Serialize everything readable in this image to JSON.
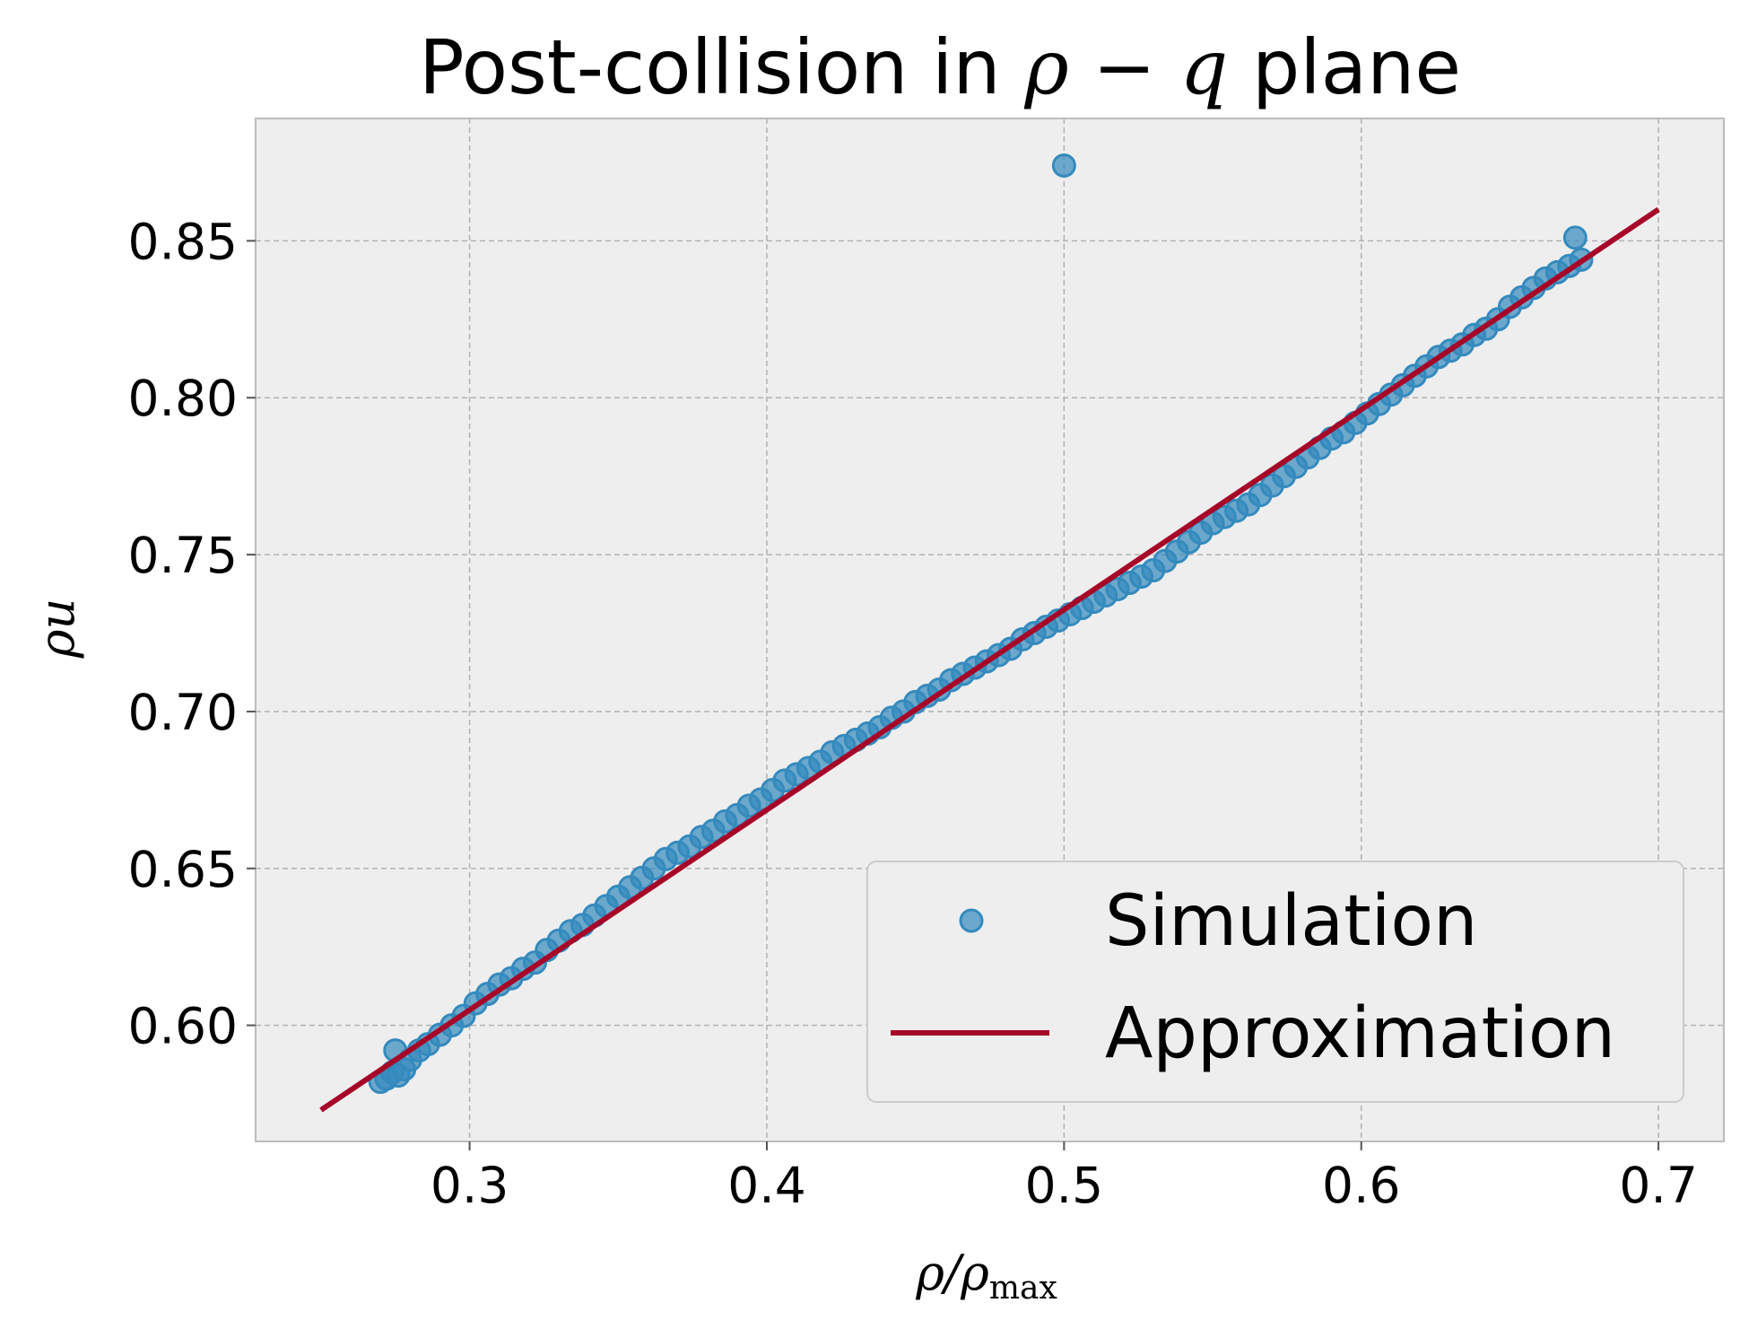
{
  "chart_data": {
    "type": "scatter",
    "title": {
      "prefix": "Post-collision in ",
      "math_rho": "ρ",
      "math_minus": " − ",
      "math_q": "q",
      "suffix": " plane"
    },
    "xlabel": {
      "main": "ρ/ρ",
      "sub": "max"
    },
    "ylabel": "ρu",
    "xlim": [
      0.228,
      0.722
    ],
    "ylim": [
      0.563,
      0.889
    ],
    "xticks": [
      {
        "value": 0.3,
        "label": "0.3"
      },
      {
        "value": 0.4,
        "label": "0.4"
      },
      {
        "value": 0.5,
        "label": "0.5"
      },
      {
        "value": 0.6,
        "label": "0.6"
      },
      {
        "value": 0.7,
        "label": "0.7"
      }
    ],
    "yticks": [
      {
        "value": 0.6,
        "label": "0.60"
      },
      {
        "value": 0.65,
        "label": "0.65"
      },
      {
        "value": 0.7,
        "label": "0.70"
      },
      {
        "value": 0.75,
        "label": "0.75"
      },
      {
        "value": 0.8,
        "label": "0.80"
      },
      {
        "value": 0.85,
        "label": "0.85"
      }
    ],
    "grid": true,
    "legend_position": "lower-right",
    "series": [
      {
        "name": "Simulation",
        "kind": "scatter",
        "color": "#348ABD",
        "points": [
          [
            0.27,
            0.582
          ],
          [
            0.272,
            0.583
          ],
          [
            0.274,
            0.585
          ],
          [
            0.275,
            0.592
          ],
          [
            0.276,
            0.584
          ],
          [
            0.278,
            0.586
          ],
          [
            0.28,
            0.589
          ],
          [
            0.283,
            0.592
          ],
          [
            0.286,
            0.594
          ],
          [
            0.29,
            0.597
          ],
          [
            0.294,
            0.6
          ],
          [
            0.298,
            0.603
          ],
          [
            0.302,
            0.607
          ],
          [
            0.306,
            0.61
          ],
          [
            0.31,
            0.613
          ],
          [
            0.314,
            0.615
          ],
          [
            0.318,
            0.618
          ],
          [
            0.322,
            0.62
          ],
          [
            0.326,
            0.624
          ],
          [
            0.33,
            0.627
          ],
          [
            0.334,
            0.63
          ],
          [
            0.338,
            0.632
          ],
          [
            0.342,
            0.635
          ],
          [
            0.346,
            0.638
          ],
          [
            0.35,
            0.641
          ],
          [
            0.354,
            0.644
          ],
          [
            0.358,
            0.647
          ],
          [
            0.362,
            0.65
          ],
          [
            0.366,
            0.653
          ],
          [
            0.37,
            0.655
          ],
          [
            0.374,
            0.657
          ],
          [
            0.378,
            0.66
          ],
          [
            0.382,
            0.662
          ],
          [
            0.386,
            0.665
          ],
          [
            0.39,
            0.667
          ],
          [
            0.394,
            0.67
          ],
          [
            0.398,
            0.672
          ],
          [
            0.402,
            0.675
          ],
          [
            0.406,
            0.678
          ],
          [
            0.41,
            0.68
          ],
          [
            0.414,
            0.682
          ],
          [
            0.418,
            0.684
          ],
          [
            0.422,
            0.687
          ],
          [
            0.426,
            0.689
          ],
          [
            0.43,
            0.691
          ],
          [
            0.434,
            0.693
          ],
          [
            0.438,
            0.695
          ],
          [
            0.442,
            0.698
          ],
          [
            0.446,
            0.7
          ],
          [
            0.45,
            0.703
          ],
          [
            0.454,
            0.705
          ],
          [
            0.458,
            0.707
          ],
          [
            0.462,
            0.71
          ],
          [
            0.466,
            0.712
          ],
          [
            0.47,
            0.714
          ],
          [
            0.474,
            0.716
          ],
          [
            0.478,
            0.718
          ],
          [
            0.482,
            0.72
          ],
          [
            0.486,
            0.723
          ],
          [
            0.49,
            0.725
          ],
          [
            0.494,
            0.727
          ],
          [
            0.498,
            0.729
          ],
          [
            0.502,
            0.731
          ],
          [
            0.506,
            0.733
          ],
          [
            0.51,
            0.735
          ],
          [
            0.514,
            0.737
          ],
          [
            0.518,
            0.739
          ],
          [
            0.522,
            0.741
          ],
          [
            0.526,
            0.743
          ],
          [
            0.53,
            0.745
          ],
          [
            0.534,
            0.748
          ],
          [
            0.538,
            0.751
          ],
          [
            0.542,
            0.754
          ],
          [
            0.546,
            0.757
          ],
          [
            0.55,
            0.76
          ],
          [
            0.554,
            0.762
          ],
          [
            0.558,
            0.764
          ],
          [
            0.562,
            0.766
          ],
          [
            0.566,
            0.769
          ],
          [
            0.57,
            0.772
          ],
          [
            0.574,
            0.775
          ],
          [
            0.578,
            0.778
          ],
          [
            0.582,
            0.781
          ],
          [
            0.586,
            0.784
          ],
          [
            0.59,
            0.787
          ],
          [
            0.594,
            0.789
          ],
          [
            0.598,
            0.792
          ],
          [
            0.602,
            0.795
          ],
          [
            0.606,
            0.798
          ],
          [
            0.61,
            0.801
          ],
          [
            0.614,
            0.804
          ],
          [
            0.618,
            0.807
          ],
          [
            0.622,
            0.81
          ],
          [
            0.626,
            0.813
          ],
          [
            0.63,
            0.815
          ],
          [
            0.634,
            0.817
          ],
          [
            0.638,
            0.82
          ],
          [
            0.642,
            0.822
          ],
          [
            0.646,
            0.825
          ],
          [
            0.65,
            0.829
          ],
          [
            0.654,
            0.832
          ],
          [
            0.658,
            0.835
          ],
          [
            0.662,
            0.838
          ],
          [
            0.666,
            0.84
          ],
          [
            0.67,
            0.842
          ],
          [
            0.672,
            0.851
          ],
          [
            0.674,
            0.844
          ],
          [
            0.5,
            0.874
          ]
        ]
      },
      {
        "name": "Approximation",
        "kind": "line",
        "color": "#A60628",
        "points": [
          [
            0.25,
            0.573
          ],
          [
            0.7,
            0.86
          ]
        ]
      }
    ]
  }
}
